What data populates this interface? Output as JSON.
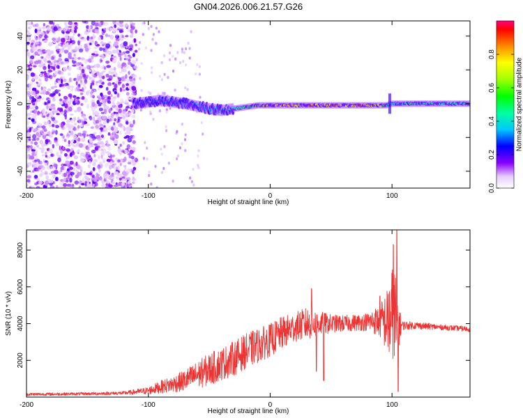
{
  "title": "GN04.2026.006.21.57.G26",
  "chart_data": [
    {
      "type": "heatmap",
      "title": "GN04.2026.006.21.57.G26",
      "xlabel": "Height of straight line (km)",
      "ylabel": "Frequency (Hz)",
      "xlim": [
        -200,
        164
      ],
      "ylim": [
        -50,
        49
      ],
      "xticks": [
        -200,
        -100,
        0,
        100
      ],
      "yticks": [
        -40,
        -20,
        0,
        20,
        40
      ],
      "colorbar": {
        "label": "Normalized spectral amplitude",
        "range": [
          0,
          1
        ],
        "ticks": [
          "0.0",
          "0.2",
          "0.4",
          "0.6",
          "0.8"
        ],
        "tick_values": [
          0.0,
          0.2,
          0.4,
          0.6,
          0.8
        ]
      },
      "ridge": {
        "x": [
          -110,
          -90,
          -70,
          -50,
          -40,
          -30,
          -20,
          -10,
          0,
          20,
          40,
          60,
          80,
          95,
          100,
          120,
          140,
          164
        ],
        "freq": [
          0,
          2,
          0,
          -3,
          -4,
          -3,
          -2,
          -1,
          -1,
          -1,
          -1,
          -1,
          -1,
          -1,
          0,
          0,
          0,
          0
        ],
        "amplitude": [
          0.25,
          0.3,
          0.3,
          0.35,
          0.4,
          0.45,
          0.5,
          0.65,
          0.8,
          0.85,
          0.85,
          0.85,
          0.85,
          0.6,
          0.45,
          0.5,
          0.45,
          0.45
        ]
      },
      "noise_region_x": [
        -200,
        -110
      ]
    },
    {
      "type": "line",
      "title": "",
      "xlabel": "Height of straight line (km)",
      "ylabel": "SNR (10 * v/v)",
      "xlim": [
        -200,
        164
      ],
      "ylim": [
        0,
        9100
      ],
      "xticks": [
        -200,
        -100,
        0,
        100
      ],
      "yticks": [
        2000,
        4000,
        6000,
        8000
      ],
      "color": "#ee3333",
      "envelope": {
        "x": [
          -200,
          -150,
          -120,
          -100,
          -90,
          -80,
          -70,
          -60,
          -50,
          -40,
          -30,
          -20,
          -10,
          0,
          10,
          20,
          30,
          40,
          50,
          60,
          70,
          80,
          90,
          96,
          100,
          103,
          105,
          108,
          120,
          140,
          164
        ],
        "mean": [
          150,
          180,
          220,
          350,
          550,
          700,
          900,
          1200,
          1500,
          1800,
          2100,
          2500,
          2800,
          3100,
          3500,
          3800,
          4000,
          4000,
          4000,
          4000,
          4050,
          4100,
          4150,
          4100,
          4200,
          4000,
          3900,
          3900,
          3900,
          3800,
          3700
        ],
        "spread": [
          80,
          80,
          100,
          200,
          350,
          450,
          600,
          750,
          900,
          900,
          950,
          950,
          950,
          900,
          900,
          800,
          900,
          700,
          500,
          450,
          450,
          500,
          900,
          1800,
          3000,
          3200,
          1500,
          250,
          200,
          150,
          150
        ]
      },
      "peaks": [
        {
          "x": 34,
          "y": 5900
        },
        {
          "x": 38,
          "y": 1400
        },
        {
          "x": 44,
          "y": 900
        },
        {
          "x": 90,
          "y": 5500
        },
        {
          "x": 101,
          "y": 8300
        },
        {
          "x": 104,
          "y": 9100
        },
        {
          "x": 105,
          "y": 300
        }
      ]
    }
  ]
}
